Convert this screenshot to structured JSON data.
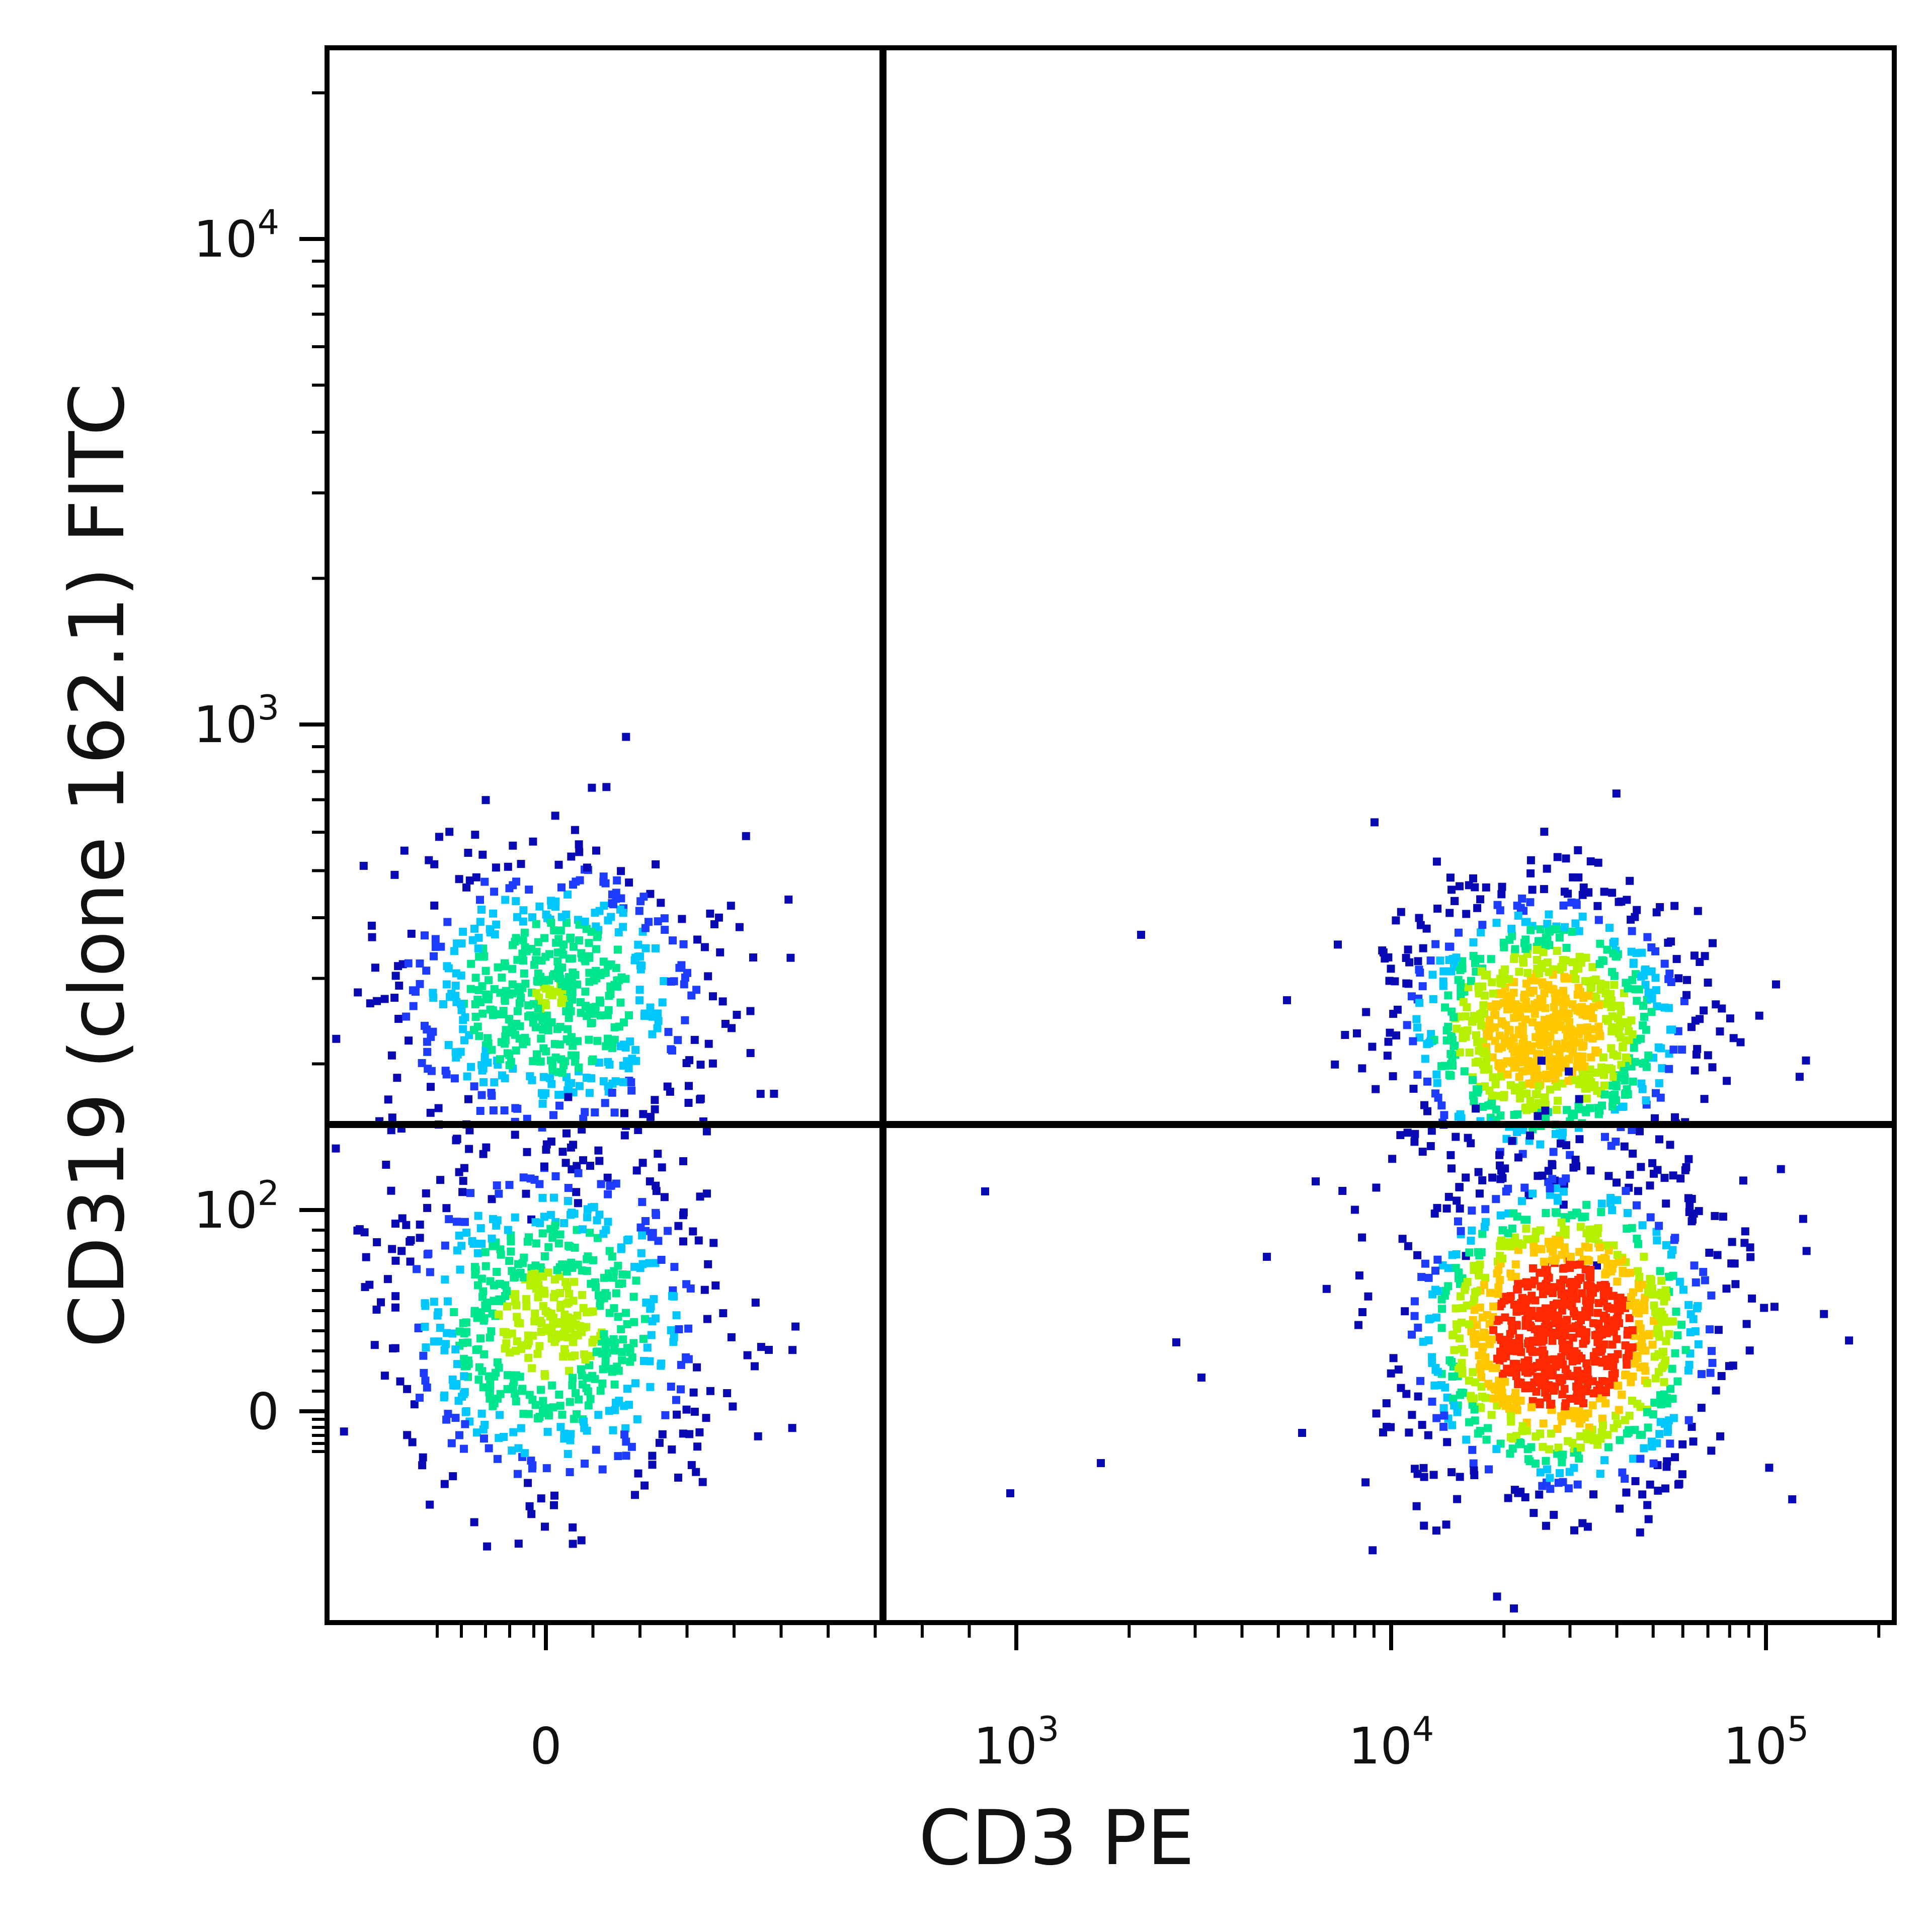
{
  "chart_data": {
    "type": "scatter",
    "subtype": "flow-cytometry-pseudocolor-density",
    "xlabel": "CD3 PE",
    "ylabel": "CD319 (clone 162.1) FITC",
    "x_scale": "biexponential",
    "y_scale": "biexponential",
    "x_ticks": [
      {
        "value": 0,
        "base": "0",
        "exp": ""
      },
      {
        "value": 1000,
        "base": "10",
        "exp": "3"
      },
      {
        "value": 10000,
        "base": "10",
        "exp": "4"
      },
      {
        "value": 100000,
        "base": "10",
        "exp": "5"
      }
    ],
    "y_ticks": [
      {
        "value": 0,
        "base": "0",
        "exp": ""
      },
      {
        "value": 100,
        "base": "10",
        "exp": "2"
      },
      {
        "value": 1000,
        "base": "10",
        "exp": "3"
      },
      {
        "value": 10000,
        "base": "10",
        "exp": "4"
      }
    ],
    "xlim": [
      -200,
      200000
    ],
    "ylim": [
      -40,
      25000
    ],
    "grid": false,
    "legend": "none",
    "quadrant_gate": {
      "x": 300,
      "y": 140
    },
    "populations": [
      {
        "name": "CD3- CD319+",
        "center_x": 0,
        "center_y": 280,
        "relative_density": 0.55
      },
      {
        "name": "CD3- CD319-",
        "center_x": 0,
        "center_y": 45,
        "relative_density": 0.6
      },
      {
        "name": "CD3+ CD319+",
        "center_x": 25000,
        "center_y": 240,
        "relative_density": 0.8
      },
      {
        "name": "CD3+ CD319-",
        "center_x": 28000,
        "center_y": 40,
        "relative_density": 1.0
      }
    ],
    "density_colors": [
      "#0a0ab4",
      "#1e3cff",
      "#00c8ff",
      "#00e68c",
      "#b4f000",
      "#ffc800",
      "#ff2800"
    ]
  }
}
